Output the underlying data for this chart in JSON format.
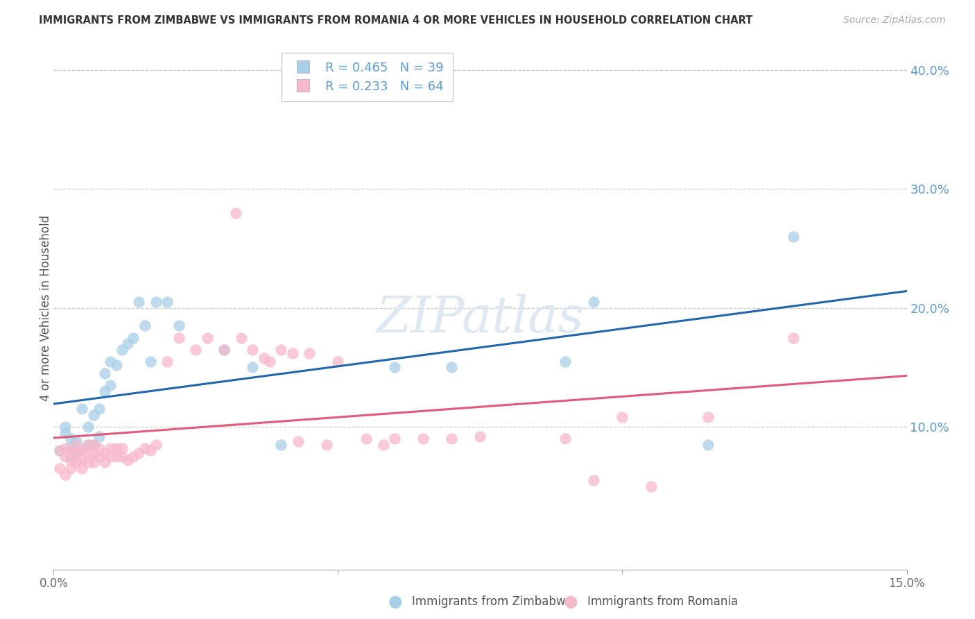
{
  "title": "IMMIGRANTS FROM ZIMBABWE VS IMMIGRANTS FROM ROMANIA 4 OR MORE VEHICLES IN HOUSEHOLD CORRELATION CHART",
  "source": "Source: ZipAtlas.com",
  "ylabel": "4 or more Vehicles in Household",
  "xlim": [
    0.0,
    0.15
  ],
  "ylim": [
    -0.02,
    0.42
  ],
  "y_ticks_right": [
    0.1,
    0.2,
    0.3,
    0.4
  ],
  "y_tick_labels_right": [
    "10.0%",
    "20.0%",
    "30.0%",
    "40.0%"
  ],
  "legend_R_zimbabwe": "R = 0.465",
  "legend_N_zimbabwe": "N = 39",
  "legend_R_romania": "R = 0.233",
  "legend_N_romania": "N = 64",
  "color_zimbabwe": "#a8cfe8",
  "color_romania": "#f7b8cc",
  "color_line_zimbabwe": "#2166ac",
  "color_line_romania": "#e05a7a",
  "color_right_axis": "#5b9bd5",
  "watermark_color": "#dde8f0",
  "zimbabwe_x": [
    0.001,
    0.002,
    0.002,
    0.003,
    0.003,
    0.003,
    0.004,
    0.004,
    0.005,
    0.005,
    0.006,
    0.006,
    0.007,
    0.007,
    0.008,
    0.008,
    0.009,
    0.009,
    0.01,
    0.01,
    0.011,
    0.012,
    0.013,
    0.014,
    0.015,
    0.016,
    0.017,
    0.018,
    0.02,
    0.022,
    0.03,
    0.035,
    0.04,
    0.06,
    0.07,
    0.09,
    0.095,
    0.115,
    0.13
  ],
  "zimbabwe_y": [
    0.08,
    0.095,
    0.1,
    0.075,
    0.082,
    0.09,
    0.08,
    0.088,
    0.08,
    0.115,
    0.085,
    0.1,
    0.085,
    0.11,
    0.092,
    0.115,
    0.13,
    0.145,
    0.135,
    0.155,
    0.152,
    0.165,
    0.17,
    0.175,
    0.205,
    0.185,
    0.155,
    0.205,
    0.205,
    0.185,
    0.165,
    0.15,
    0.085,
    0.15,
    0.15,
    0.155,
    0.205,
    0.085,
    0.26
  ],
  "romania_x": [
    0.001,
    0.001,
    0.002,
    0.002,
    0.002,
    0.003,
    0.003,
    0.003,
    0.004,
    0.004,
    0.004,
    0.005,
    0.005,
    0.005,
    0.006,
    0.006,
    0.006,
    0.007,
    0.007,
    0.007,
    0.008,
    0.008,
    0.009,
    0.009,
    0.01,
    0.01,
    0.011,
    0.011,
    0.012,
    0.012,
    0.013,
    0.014,
    0.015,
    0.016,
    0.017,
    0.018,
    0.02,
    0.022,
    0.025,
    0.027,
    0.03,
    0.032,
    0.033,
    0.035,
    0.037,
    0.038,
    0.04,
    0.042,
    0.043,
    0.045,
    0.048,
    0.05,
    0.055,
    0.058,
    0.06,
    0.065,
    0.07,
    0.075,
    0.09,
    0.095,
    0.1,
    0.105,
    0.115,
    0.13
  ],
  "romania_y": [
    0.065,
    0.08,
    0.06,
    0.075,
    0.082,
    0.065,
    0.072,
    0.08,
    0.07,
    0.078,
    0.085,
    0.065,
    0.072,
    0.08,
    0.07,
    0.078,
    0.085,
    0.07,
    0.078,
    0.085,
    0.075,
    0.082,
    0.07,
    0.078,
    0.075,
    0.082,
    0.075,
    0.082,
    0.075,
    0.082,
    0.072,
    0.075,
    0.078,
    0.082,
    0.08,
    0.085,
    0.155,
    0.175,
    0.165,
    0.175,
    0.165,
    0.28,
    0.175,
    0.165,
    0.158,
    0.155,
    0.165,
    0.162,
    0.088,
    0.162,
    0.085,
    0.155,
    0.09,
    0.085,
    0.09,
    0.09,
    0.09,
    0.092,
    0.09,
    0.055,
    0.108,
    0.05,
    0.108,
    0.175
  ]
}
